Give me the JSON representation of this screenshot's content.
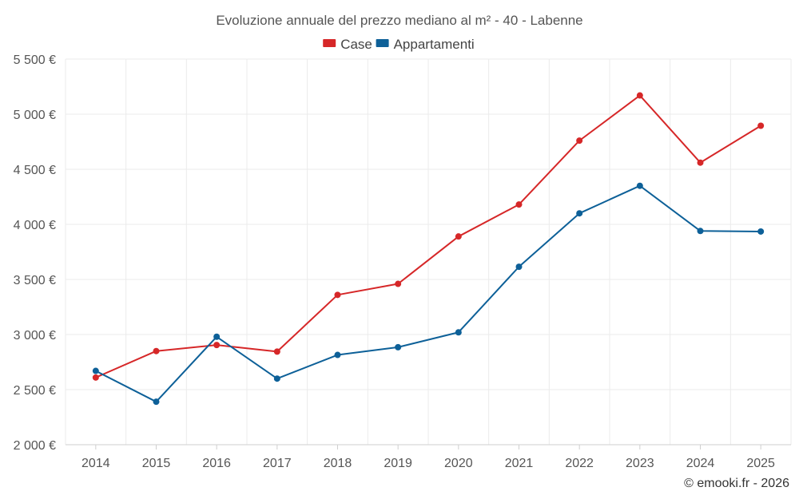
{
  "chart_data": {
    "type": "line",
    "title": "Evoluzione annuale del prezzo mediano al m² - 40 - Labenne",
    "categories": [
      "2014",
      "2015",
      "2016",
      "2017",
      "2018",
      "2019",
      "2020",
      "2021",
      "2022",
      "2023",
      "2024",
      "2025"
    ],
    "y_ticks": [
      2000,
      2500,
      3000,
      3500,
      4000,
      4500,
      5000,
      5500
    ],
    "y_tick_labels": [
      "2 000 €",
      "2 500 €",
      "3 000 €",
      "3 500 €",
      "4 000 €",
      "4 500 €",
      "5 000 €",
      "5 500 €"
    ],
    "ylim": [
      2000,
      5500
    ],
    "xlabel": "",
    "ylabel": "",
    "grid": true,
    "legend_position": "top-center",
    "series": [
      {
        "name": "Case",
        "color": "#d62728",
        "values": [
          2610,
          2850,
          2905,
          2845,
          3360,
          3460,
          3890,
          4180,
          4760,
          5170,
          4560,
          4895
        ]
      },
      {
        "name": "Appartamenti",
        "color": "#0d6098",
        "values": [
          2670,
          2390,
          2980,
          2600,
          2815,
          2885,
          3020,
          3615,
          4100,
          4350,
          3940,
          3935
        ]
      }
    ]
  },
  "credit": "© emooki.fr - 2026"
}
